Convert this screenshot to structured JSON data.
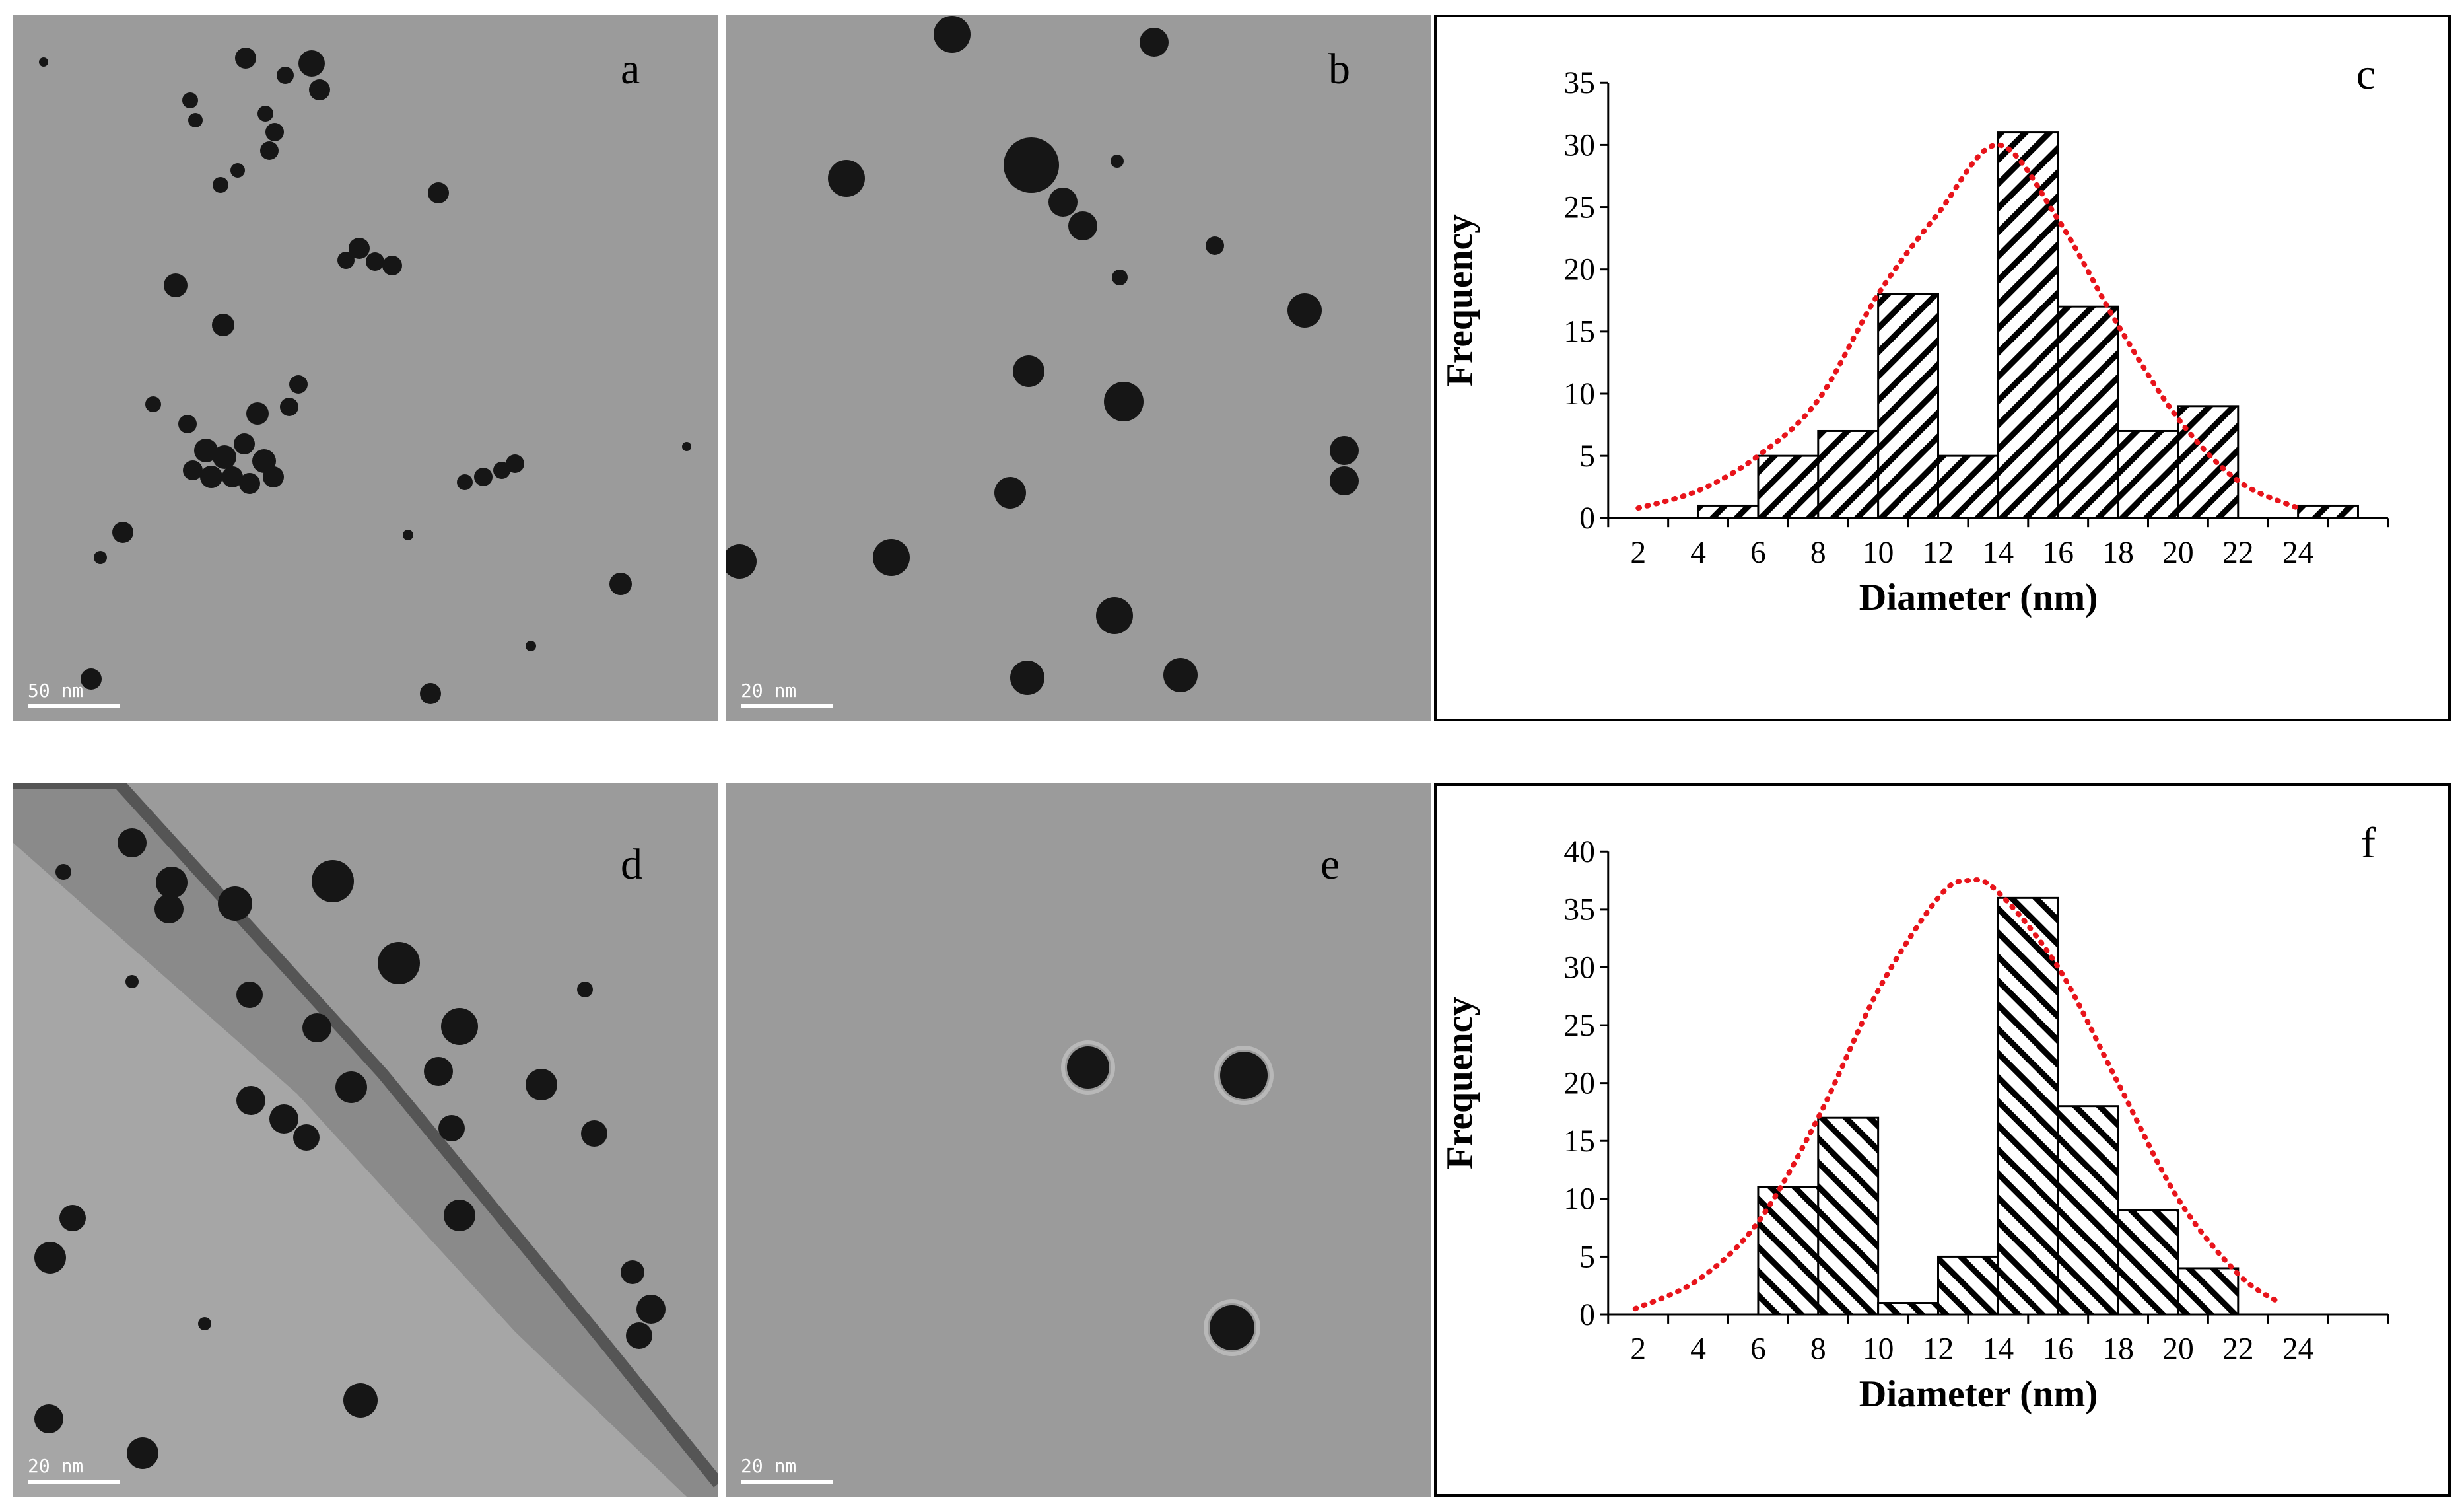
{
  "panel_labels": {
    "a": "a",
    "b": "b",
    "c": "c",
    "d": "d",
    "e": "e",
    "f": "f"
  },
  "scale_bars": {
    "a": "50 nm",
    "b": "20 nm",
    "d": "20 nm",
    "e": "20 nm"
  },
  "colors": {
    "bars_fill": "#ffffff",
    "hatch": "#000000",
    "fit_curve": "#e8141b",
    "tem_background": "#9b9b9b",
    "particles": "#161616"
  },
  "chart_data": [
    {
      "panel": "c",
      "type": "bar",
      "xlabel": "Diameter (nm)",
      "ylabel": "Frequency",
      "ylim": [
        0,
        35
      ],
      "yticks": [
        0,
        5,
        10,
        15,
        20,
        25,
        30,
        35
      ],
      "xticks": [
        2,
        4,
        6,
        8,
        10,
        12,
        14,
        16,
        18,
        20,
        22,
        24
      ],
      "xlim": [
        1,
        27
      ],
      "hatch": "forward",
      "bin_width": 2,
      "bars": [
        {
          "center": 4,
          "value": 1
        },
        {
          "center": 6,
          "value": 5
        },
        {
          "center": 8,
          "value": 7
        },
        {
          "center": 10,
          "value": 18
        },
        {
          "center": 12,
          "value": 5
        },
        {
          "center": 14,
          "value": 31
        },
        {
          "center": 16,
          "value": 17
        },
        {
          "center": 18,
          "value": 7
        },
        {
          "center": 20,
          "value": 9
        },
        {
          "center": 22,
          "value": 0
        },
        {
          "center": 24,
          "value": 1
        }
      ],
      "fit_curve": [
        [
          2,
          0.8
        ],
        [
          4,
          2.2
        ],
        [
          6,
          5
        ],
        [
          8,
          9.5
        ],
        [
          10,
          18
        ],
        [
          12,
          24.5
        ],
        [
          14,
          30
        ],
        [
          16,
          24
        ],
        [
          18,
          15.5
        ],
        [
          20,
          8
        ],
        [
          22,
          3
        ],
        [
          24,
          0.8
        ]
      ]
    },
    {
      "panel": "f",
      "type": "bar",
      "xlabel": "Diameter (nm)",
      "ylabel": "Frequency",
      "ylim": [
        0,
        40
      ],
      "yticks": [
        0,
        5,
        10,
        15,
        20,
        25,
        30,
        35,
        40
      ],
      "xticks": [
        2,
        4,
        6,
        8,
        10,
        12,
        14,
        16,
        18,
        20,
        22,
        24
      ],
      "xlim": [
        1,
        27
      ],
      "hatch": "backward",
      "bin_width": 2,
      "bars": [
        {
          "center": 6,
          "value": 11
        },
        {
          "center": 8,
          "value": 17
        },
        {
          "center": 10,
          "value": 1
        },
        {
          "center": 12,
          "value": 5
        },
        {
          "center": 14,
          "value": 36
        },
        {
          "center": 16,
          "value": 18
        },
        {
          "center": 18,
          "value": 9
        },
        {
          "center": 20,
          "value": 4
        }
      ],
      "fit_curve": [
        [
          1.9,
          0.5
        ],
        [
          4,
          3
        ],
        [
          6,
          8
        ],
        [
          8,
          17
        ],
        [
          10,
          28
        ],
        [
          12,
          36
        ],
        [
          13,
          37.5
        ],
        [
          14,
          36.5
        ],
        [
          16,
          30
        ],
        [
          18,
          20
        ],
        [
          20,
          10
        ],
        [
          22,
          3.5
        ],
        [
          23.4,
          1
        ]
      ]
    }
  ]
}
